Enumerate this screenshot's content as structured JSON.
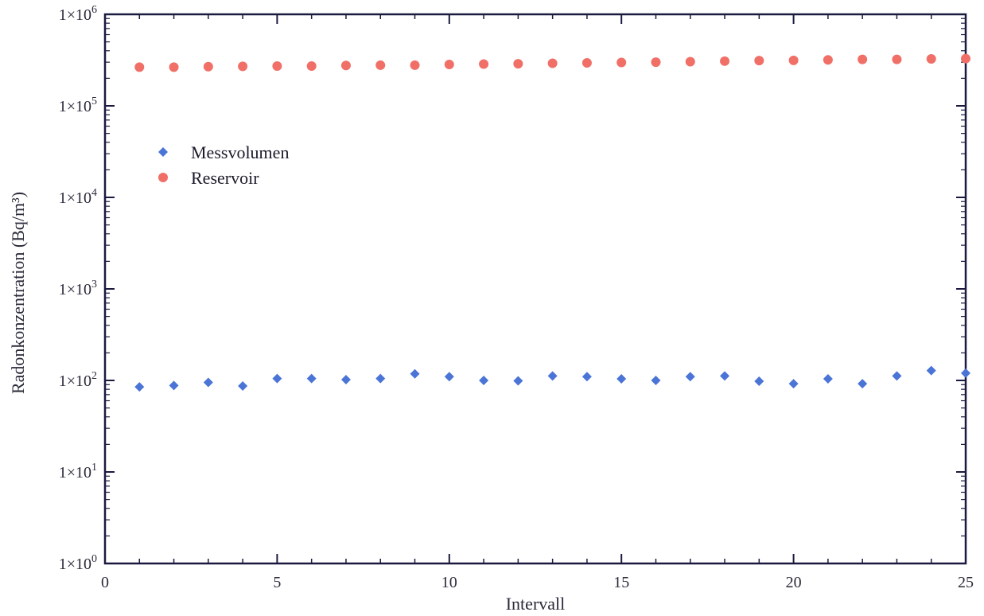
{
  "chart_data": {
    "type": "scatter",
    "xlabel": "Intervall",
    "ylabel": "Radonkonzentration (Bq/m³)",
    "xlim": [
      0,
      25
    ],
    "ylim": [
      1,
      1000000
    ],
    "y_scale": "log",
    "grid": false,
    "legend_position": "upper-left",
    "x_ticks": [
      {
        "value": 0,
        "label": "0"
      },
      {
        "value": 5,
        "label": "5"
      },
      {
        "value": 10,
        "label": "10"
      },
      {
        "value": 15,
        "label": "15"
      },
      {
        "value": 20,
        "label": "20"
      },
      {
        "value": 25,
        "label": "25"
      }
    ],
    "y_ticks": [
      {
        "value": 1,
        "base": "1×10",
        "exp": "0"
      },
      {
        "value": 10,
        "base": "1×10",
        "exp": "1"
      },
      {
        "value": 100,
        "base": "1×10",
        "exp": "2"
      },
      {
        "value": 1000,
        "base": "1×10",
        "exp": "3"
      },
      {
        "value": 10000,
        "base": "1×10",
        "exp": "4"
      },
      {
        "value": 100000,
        "base": "1×10",
        "exp": "5"
      },
      {
        "value": 1000000,
        "base": "1×10",
        "exp": "6"
      }
    ],
    "series": [
      {
        "name": "Messvolumen",
        "color": "#4a74d6",
        "marker": "diamond",
        "x": [
          1,
          2,
          3,
          4,
          5,
          6,
          7,
          8,
          9,
          10,
          11,
          12,
          13,
          14,
          15,
          16,
          17,
          18,
          19,
          20,
          21,
          22,
          23,
          24,
          25
        ],
        "y": [
          85,
          88,
          95,
          87,
          105,
          105,
          102,
          105,
          118,
          110,
          100,
          99,
          112,
          110,
          104,
          100,
          110,
          112,
          98,
          92,
          104,
          92,
          112,
          128,
          120
        ]
      },
      {
        "name": "Reservoir",
        "color": "#f07068",
        "marker": "circle",
        "x": [
          1,
          2,
          3,
          4,
          5,
          6,
          7,
          8,
          9,
          10,
          11,
          12,
          13,
          14,
          15,
          16,
          17,
          18,
          19,
          20,
          21,
          22,
          23,
          24,
          25
        ],
        "y": [
          265000,
          265000,
          268000,
          270000,
          272000,
          272000,
          276000,
          278000,
          278000,
          283000,
          286000,
          288000,
          292000,
          295000,
          298000,
          300000,
          304000,
          308000,
          312000,
          314000,
          318000,
          322000,
          322000,
          326000,
          328000
        ]
      }
    ]
  }
}
